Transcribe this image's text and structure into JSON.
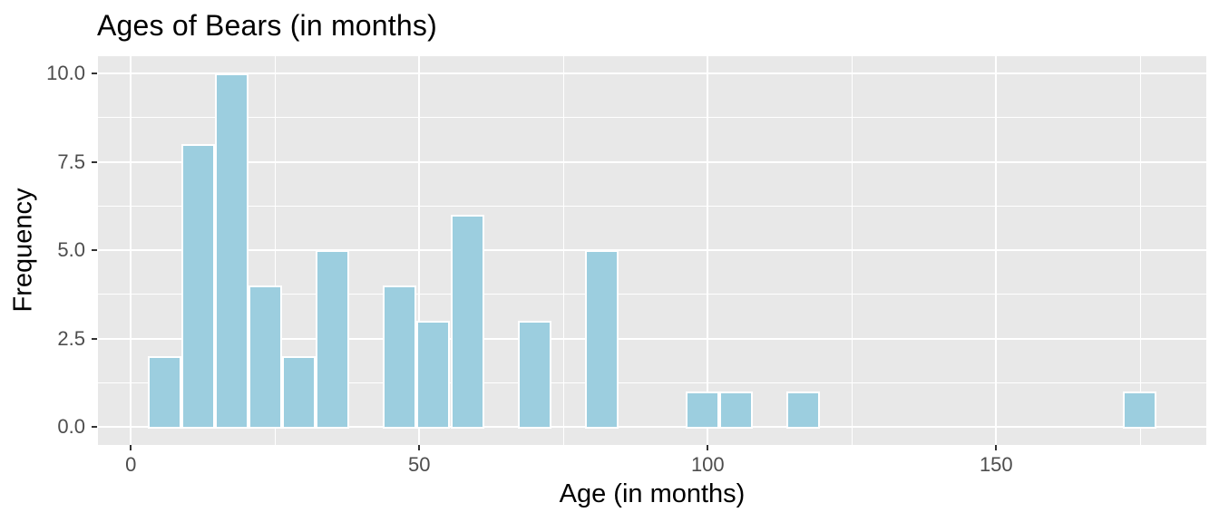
{
  "chart_data": {
    "type": "bar",
    "subtype": "histogram",
    "title": "Ages of Bears (in months)",
    "xlabel": "Age (in months)",
    "ylabel": "Frequency",
    "x_ticks": [
      0,
      50,
      100,
      150
    ],
    "x_tick_labels": [
      "0",
      "50",
      "100",
      "150"
    ],
    "x_minor_ticks": [
      25,
      75,
      125,
      175
    ],
    "y_ticks": [
      0,
      2.5,
      5,
      7.5,
      10
    ],
    "y_tick_labels": [
      "0.0",
      "2.5",
      "5.0",
      "7.5",
      "10.0"
    ],
    "y_minor_ticks": [
      1.25,
      3.75,
      6.25,
      8.75
    ],
    "xlim": [
      -5.7,
      186.4
    ],
    "ylim": [
      -0.5,
      10.5
    ],
    "bins": {
      "start": 2.91,
      "width": 5.83,
      "counts": [
        2,
        8,
        10,
        4,
        2,
        5,
        0,
        4,
        3,
        6,
        0,
        3,
        0,
        5,
        0,
        0,
        1,
        1,
        0,
        1,
        0,
        0,
        0,
        0,
        0,
        0,
        0,
        0,
        0,
        1
      ]
    },
    "grid": true,
    "legend": false,
    "colors": {
      "bar_fill": "#9CCEDF",
      "bar_stroke": "#FFFFFF",
      "panel_bg": "#E8E8E8",
      "grid": "#FFFFFF",
      "tick_label": "#4D4D4D",
      "tick_mark": "#333333",
      "text": "#000000"
    }
  }
}
